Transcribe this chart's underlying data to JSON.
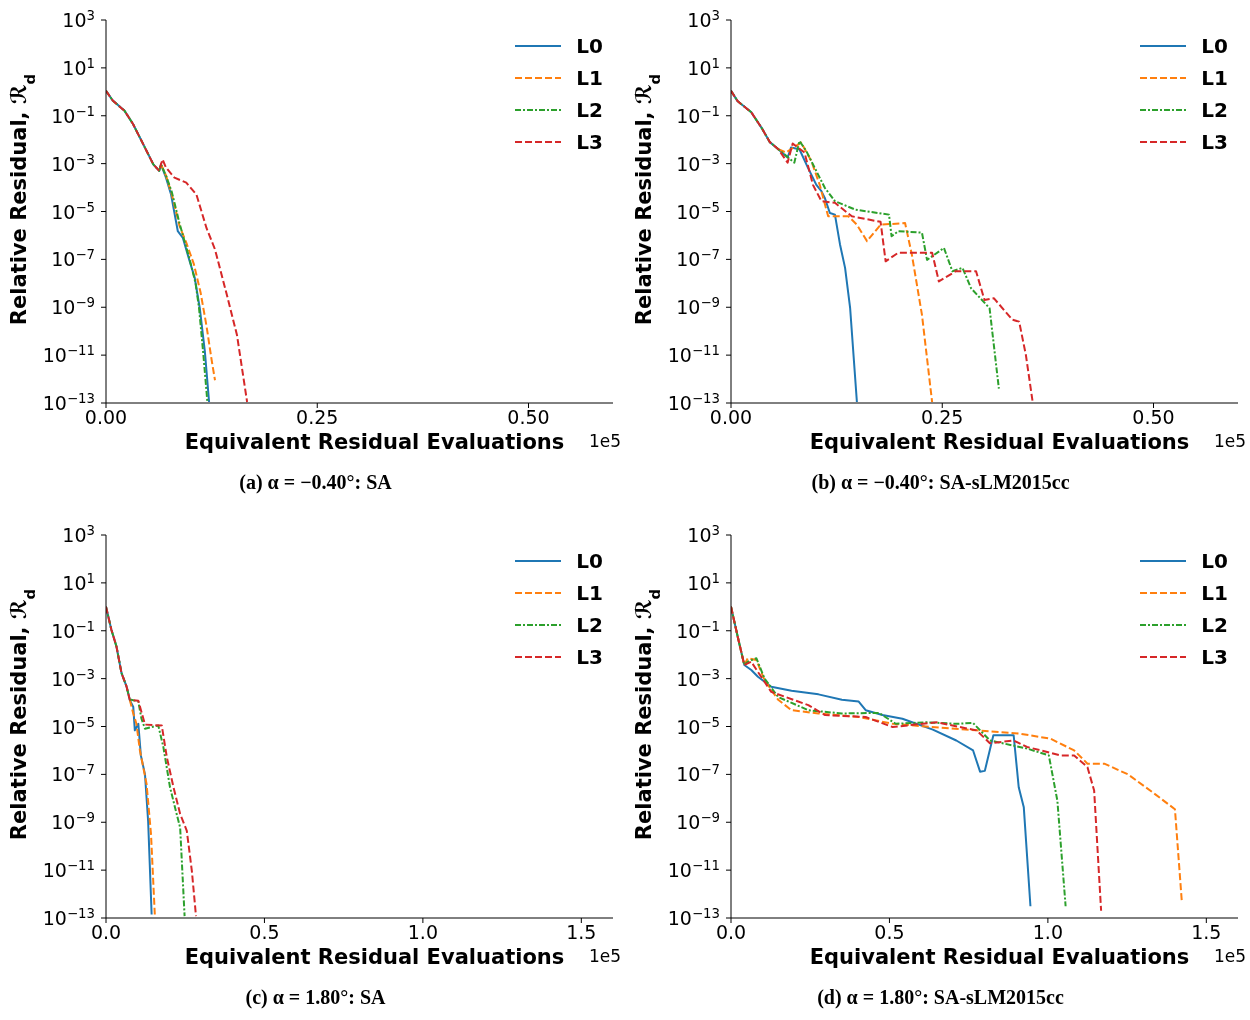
{
  "chart_data": [
    {
      "type": "line",
      "title": "(a) α = −0.40°: SA",
      "xlabel": "Equivalent Residual Evaluations",
      "ylabel": "Relative Residual, ℛ$_{d}$",
      "annotations": [
        "1e5"
      ],
      "log": true,
      "legend": "top right",
      "xlim": [
        0,
        0.6
      ],
      "xticks": [
        {
          "value": 0,
          "label": "0.00"
        },
        {
          "value": 0.25,
          "label": "0.25"
        },
        {
          "value": 0.5,
          "label": "0.50"
        }
      ],
      "ylim": [
        1e-13,
        1000
      ],
      "yticks": [
        {
          "value": 1000,
          "label": "10$^{3}$"
        },
        {
          "value": 10,
          "label": "10$^{1}$"
        },
        {
          "value": 0.1,
          "label": "10$^{−1}$"
        },
        {
          "value": 0.001,
          "label": "10$^{−3}$"
        },
        {
          "value": 1e-05,
          "label": "10$^{−5}$"
        },
        {
          "value": 1e-07,
          "label": "10$^{−7}$"
        },
        {
          "value": 1e-09,
          "label": "10$^{−9}$"
        },
        {
          "value": 1e-11,
          "label": "10$^{−11}$"
        },
        {
          "value": 1e-13,
          "label": "10$^{−13}$"
        }
      ],
      "series": [
        {
          "name": "L0",
          "color": "#1f77b4",
          "line_style": "solid",
          "x": [
            0,
            0.008,
            0.022,
            0.032,
            0.044,
            0.056,
            0.063,
            0.065,
            0.071,
            0.077,
            0.085,
            0.091,
            0.099,
            0.105,
            0.111,
            0.117,
            0.122
          ],
          "values": [
            1.1,
            0.43,
            0.16,
            0.045,
            0.0065,
            0.00093,
            0.0005,
            0.00093,
            0.00026,
            5.1e-05,
            1.5e-06,
            7.9e-07,
            8.3e-08,
            1.7e-08,
            9.1e-10,
            1.4e-11,
            1.1e-13
          ]
        },
        {
          "name": "L1",
          "color": "#ff7f0e",
          "line_style": "dashed",
          "x": [
            0.065,
            0.071,
            0.078,
            0.087,
            0.095,
            0.104,
            0.112,
            0.119,
            0.125,
            0.129
          ],
          "values": [
            0.00093,
            0.00032,
            5e-05,
            2.5e-06,
            5e-07,
            6.3e-08,
            4e-09,
            1.6e-10,
            6.3e-12,
            8.9e-13
          ]
        },
        {
          "name": "L2",
          "color": "#2ca02c",
          "line_style": "dashdot",
          "x": [
            0,
            0.008,
            0.022,
            0.032,
            0.044,
            0.056,
            0.063,
            0.065,
            0.071,
            0.078,
            0.087,
            0.099,
            0.106,
            0.11,
            0.115,
            0.12
          ],
          "values": [
            1.1,
            0.43,
            0.16,
            0.045,
            0.0065,
            0.00093,
            0.0005,
            0.00093,
            0.00032,
            6.3e-05,
            3.2e-06,
            1e-07,
            1e-08,
            1e-09,
            1.3e-11,
            1.1e-13
          ]
        },
        {
          "name": "L3",
          "color": "#d62728",
          "line_style": "dashed",
          "x": [
            0,
            0.008,
            0.022,
            0.032,
            0.044,
            0.056,
            0.063,
            0.065,
            0.067,
            0.071,
            0.081,
            0.095,
            0.107,
            0.119,
            0.129,
            0.143,
            0.155,
            0.167
          ],
          "values": [
            1.1,
            0.43,
            0.16,
            0.045,
            0.0065,
            0.00093,
            0.0005,
            0.00093,
            0.0015,
            0.00068,
            0.00026,
            0.00016,
            5.1e-05,
            2e-06,
            2.6e-07,
            3.3e-09,
            6.9e-11,
            1.1e-13
          ]
        }
      ]
    },
    {
      "type": "line",
      "title": "(b) α = −0.40°: SA-sLM2015cc",
      "xlabel": "Equivalent Residual Evaluations",
      "ylabel": "Relative Residual, ℛ$_{d}$",
      "annotations": [
        "1e5"
      ],
      "log": true,
      "legend": "top right",
      "xlim": [
        0,
        0.6
      ],
      "xticks": [
        {
          "value": 0,
          "label": "0.00"
        },
        {
          "value": 0.25,
          "label": "0.25"
        },
        {
          "value": 0.5,
          "label": "0.50"
        }
      ],
      "ylim": [
        1e-13,
        1000
      ],
      "yticks": [
        {
          "value": 1000,
          "label": "10$^{3}$"
        },
        {
          "value": 10,
          "label": "10$^{1}$"
        },
        {
          "value": 0.1,
          "label": "10$^{−1}$"
        },
        {
          "value": 0.001,
          "label": "10$^{−3}$"
        },
        {
          "value": 1e-05,
          "label": "10$^{−5}$"
        },
        {
          "value": 1e-07,
          "label": "10$^{−7}$"
        },
        {
          "value": 1e-09,
          "label": "10$^{−9}$"
        },
        {
          "value": 1e-11,
          "label": "10$^{−11}$"
        },
        {
          "value": 1e-13,
          "label": "10$^{−13}$"
        }
      ],
      "series": [
        {
          "name": "L0",
          "color": "#1f77b4",
          "line_style": "solid",
          "x": [
            0,
            0.008,
            0.024,
            0.036,
            0.046,
            0.056,
            0.067,
            0.071,
            0.081,
            0.091,
            0.101,
            0.107,
            0.111,
            0.117,
            0.123,
            0.129,
            0.135,
            0.141,
            0.149
          ],
          "values": [
            1.1,
            0.4,
            0.14,
            0.032,
            0.0079,
            0.004,
            0.0018,
            0.0047,
            0.004,
            0.00068,
            0.00013,
            7.1e-05,
            3.7e-05,
            8.7e-06,
            7.4e-06,
            4.2e-07,
            4.4e-08,
            9.1e-10,
            1.1e-13
          ]
        },
        {
          "name": "L1",
          "color": "#ff7f0e",
          "line_style": "dashed",
          "x": [
            0.056,
            0.065,
            0.083,
            0.095,
            0.105,
            0.115,
            0.139,
            0.149,
            0.161,
            0.177,
            0.206,
            0.214,
            0.226,
            0.238
          ],
          "values": [
            0.004,
            0.0029,
            0.0076,
            0.0013,
            0.00013,
            6.3e-06,
            6.3e-06,
            2.8e-06,
            5.8e-07,
            2.8e-06,
            3.3e-06,
            1.6e-07,
            4.8e-10,
            1.1e-13
          ]
        },
        {
          "name": "L2",
          "color": "#2ca02c",
          "line_style": "dashdot",
          "x": [
            0,
            0.008,
            0.024,
            0.036,
            0.046,
            0.056,
            0.075,
            0.081,
            0.089,
            0.101,
            0.111,
            0.123,
            0.147,
            0.187,
            0.19,
            0.198,
            0.226,
            0.232,
            0.252,
            0.262,
            0.274,
            0.284,
            0.306,
            0.317
          ],
          "values": [
            1.1,
            0.4,
            0.14,
            0.032,
            0.0079,
            0.004,
            0.0011,
            0.0089,
            0.0034,
            0.00049,
            9.8e-05,
            2.7e-05,
            1.2e-05,
            7.4e-06,
            9.3e-07,
            1.5e-06,
            1.3e-06,
            9.5e-08,
            3e-07,
            3.2e-08,
            4.4e-08,
            6.3e-09,
            9.1e-10,
            4e-13
          ]
        },
        {
          "name": "L3",
          "color": "#d62728",
          "line_style": "dashed",
          "x": [
            0,
            0.008,
            0.024,
            0.036,
            0.046,
            0.056,
            0.067,
            0.073,
            0.087,
            0.097,
            0.107,
            0.123,
            0.143,
            0.177,
            0.183,
            0.198,
            0.238,
            0.246,
            0.266,
            0.29,
            0.3,
            0.311,
            0.333,
            0.341,
            0.349,
            0.357
          ],
          "values": [
            1.1,
            0.4,
            0.14,
            0.032,
            0.0079,
            0.004,
            0.0011,
            0.0069,
            0.0029,
            0.00013,
            2.7e-05,
            2.3e-05,
            6.3e-06,
            3.7e-06,
            8.3e-08,
            1.9e-07,
            1.9e-07,
            1.2e-08,
            3.2e-08,
            3.2e-08,
            2e-09,
            2.4e-09,
            3e-10,
            2.5e-10,
            1e-11,
            1.1e-13
          ]
        }
      ]
    },
    {
      "type": "line",
      "title": "(c) α = 1.80°: SA",
      "xlabel": "Equivalent Residual Evaluations",
      "ylabel": "Relative Residual, ℛ$_{d}$",
      "annotations": [
        "1e5"
      ],
      "log": true,
      "legend": "top right",
      "xlim": [
        0,
        1.6
      ],
      "xticks": [
        {
          "value": 0,
          "label": "0.0"
        },
        {
          "value": 0.5,
          "label": "0.5"
        },
        {
          "value": 1,
          "label": "1.0"
        },
        {
          "value": 1.5,
          "label": "1.5"
        }
      ],
      "ylim": [
        1e-13,
        1000
      ],
      "yticks": [
        {
          "value": 1000,
          "label": "10$^{3}$"
        },
        {
          "value": 10,
          "label": "10$^{1}$"
        },
        {
          "value": 0.1,
          "label": "10$^{−1}$"
        },
        {
          "value": 0.001,
          "label": "10$^{−3}$"
        },
        {
          "value": 1e-05,
          "label": "10$^{−5}$"
        },
        {
          "value": 1e-07,
          "label": "10$^{−7}$"
        },
        {
          "value": 1e-09,
          "label": "10$^{−9}$"
        },
        {
          "value": 1e-11,
          "label": "10$^{−11}$"
        },
        {
          "value": 1e-13,
          "label": "10$^{−13}$"
        }
      ],
      "series": [
        {
          "name": "L0",
          "color": "#1f77b4",
          "line_style": "solid",
          "x": [
            0,
            0.017,
            0.033,
            0.049,
            0.065,
            0.075,
            0.086,
            0.091,
            0.102,
            0.11,
            0.123,
            0.133,
            0.144
          ],
          "values": [
            1.0,
            0.11,
            0.022,
            0.0017,
            0.00046,
            0.00013,
            6.6e-05,
            6.9e-06,
            1.3e-05,
            6.2e-07,
            1e-07,
            1.1e-09,
            1.4e-13
          ]
        },
        {
          "name": "L1",
          "color": "#ff7f0e",
          "line_style": "dashed",
          "x": [
            0.075,
            0.086,
            0.096,
            0.107,
            0.128,
            0.142,
            0.154
          ],
          "values": [
            0.00013,
            3.5e-05,
            1.3e-05,
            1e-06,
            4e-08,
            3.2e-10,
            1.4e-13
          ]
        },
        {
          "name": "L2",
          "color": "#2ca02c",
          "line_style": "dashdot",
          "x": [
            0,
            0.017,
            0.033,
            0.049,
            0.065,
            0.075,
            0.08,
            0.102,
            0.112,
            0.123,
            0.165,
            0.181,
            0.202,
            0.223,
            0.234,
            0.248
          ],
          "values": [
            1.0,
            0.11,
            0.022,
            0.0017,
            0.00046,
            0.00013,
            0.00013,
            0.00011,
            2.1e-05,
            8.1e-06,
            1.1e-05,
            1.4e-06,
            2.9e-08,
            2.2e-09,
            6e-10,
            1.2e-13
          ]
        },
        {
          "name": "L3",
          "color": "#d62728",
          "line_style": "dashed",
          "x": [
            0,
            0.017,
            0.033,
            0.049,
            0.065,
            0.075,
            0.102,
            0.123,
            0.176,
            0.192,
            0.213,
            0.234,
            0.255,
            0.271,
            0.284
          ],
          "values": [
            1.0,
            0.11,
            0.022,
            0.0017,
            0.00046,
            0.00013,
            0.00012,
            1.2e-05,
            1.1e-05,
            5.2e-07,
            2.9e-08,
            2.2e-09,
            4.4e-10,
            9.1e-12,
            1.2e-13
          ]
        }
      ]
    },
    {
      "type": "line",
      "title": "(d) α = 1.80°: SA-sLM2015cc",
      "xlabel": "Equivalent Residual Evaluations",
      "ylabel": "Relative Residual, ℛ$_{d}$",
      "annotations": [
        "1e5"
      ],
      "log": true,
      "legend": "top right",
      "xlim": [
        0,
        1.6
      ],
      "xticks": [
        {
          "value": 0,
          "label": "0.0"
        },
        0.5,
        {
          "value": 1,
          "label": "1.0"
        },
        1.5
      ],
      "ylim": [
        1e-13,
        1000
      ],
      "yticks": [
        {
          "value": 1000,
          "label": "10$^{3}$"
        },
        {
          "value": 10,
          "label": "10$^{1}$"
        },
        {
          "value": 0.1,
          "label": "10$^{−1}$"
        },
        {
          "value": 0.001,
          "label": "10$^{−3}$"
        },
        {
          "value": 1e-05,
          "label": "10$^{−5}$"
        },
        {
          "value": 1e-07,
          "label": "10$^{−7}$"
        },
        {
          "value": 1e-09,
          "label": "10$^{−9}$"
        },
        {
          "value": 1e-11,
          "label": "10$^{−11}$"
        },
        {
          "value": 1e-13,
          "label": "10$^{−13}$"
        }
      ],
      "series": [
        {
          "name": "L0",
          "color": "#1f77b4",
          "line_style": "solid",
          "x": [
            0,
            0.021,
            0.042,
            0.064,
            0.085,
            0.127,
            0.191,
            0.276,
            0.35,
            0.403,
            0.425,
            0.478,
            0.541,
            0.637,
            0.711,
            0.764,
            0.786,
            0.801,
            0.828,
            0.892,
            0.908,
            0.924,
            0.945
          ],
          "values": [
            1.0,
            0.058,
            0.0037,
            0.0023,
            0.0012,
            0.00046,
            0.00031,
            0.00022,
            0.00013,
            0.00011,
            4.8e-05,
            3e-05,
            2.1e-05,
            7.4e-06,
            2.6e-06,
            1e-06,
            1.3e-07,
            1.4e-07,
            4.3e-06,
            4.3e-06,
            2.9e-08,
            4.2e-09,
            3.1e-13
          ]
        },
        {
          "name": "L1",
          "color": "#ff7f0e",
          "line_style": "dashed",
          "x": [
            0,
            0.021,
            0.042,
            0.053,
            0.08,
            0.106,
            0.149,
            0.191,
            0.276,
            0.403,
            0.51,
            0.616,
            0.775,
            0.913,
            1.008,
            1.083,
            1.125,
            1.178,
            1.253,
            1.338,
            1.401,
            1.423
          ],
          "values": [
            1.0,
            0.058,
            0.0037,
            0.0071,
            0.006,
            0.00087,
            0.00013,
            4.8e-05,
            3.5e-05,
            2.5e-05,
            1.3e-05,
            1e-05,
            6.9e-06,
            5e-06,
            3.1e-06,
            1e-06,
            2.8e-07,
            2.8e-07,
            1e-07,
            1.5e-08,
            3.5e-09,
            4.3e-13
          ]
        },
        {
          "name": "L2",
          "color": "#2ca02c",
          "line_style": "dashdot",
          "x": [
            0,
            0.021,
            0.042,
            0.053,
            0.08,
            0.106,
            0.149,
            0.244,
            0.35,
            0.467,
            0.52,
            0.616,
            0.711,
            0.764,
            0.817,
            0.934,
            1.003,
            1.03,
            1.056
          ],
          "values": [
            1.0,
            0.058,
            0.0037,
            0.0051,
            0.0071,
            0.001,
            0.00017,
            4.8e-05,
            3.5e-05,
            3.7e-05,
            1.3e-05,
            1.5e-05,
            1.3e-05,
            1.4e-05,
            2.6e-06,
            1.2e-06,
            6.2e-07,
            7.9e-09,
            3.1e-13
          ]
        },
        {
          "name": "L3",
          "color": "#d62728",
          "line_style": "dashed",
          "x": [
            0,
            0.021,
            0.042,
            0.064,
            0.085,
            0.127,
            0.244,
            0.297,
            0.425,
            0.51,
            0.648,
            0.775,
            0.817,
            0.892,
            0.934,
            1.04,
            1.083,
            1.125,
            1.146,
            1.168
          ],
          "values": [
            1.0,
            0.058,
            0.0037,
            0.0051,
            0.0019,
            0.00028,
            7.8e-05,
            3e-05,
            2.5e-05,
            9.5e-06,
            1.5e-05,
            6.9e-06,
            2e-06,
            2.6e-06,
            1.4e-06,
            6.2e-07,
            6.2e-07,
            2e-07,
            2.1e-08,
            2e-13
          ]
        }
      ]
    }
  ]
}
